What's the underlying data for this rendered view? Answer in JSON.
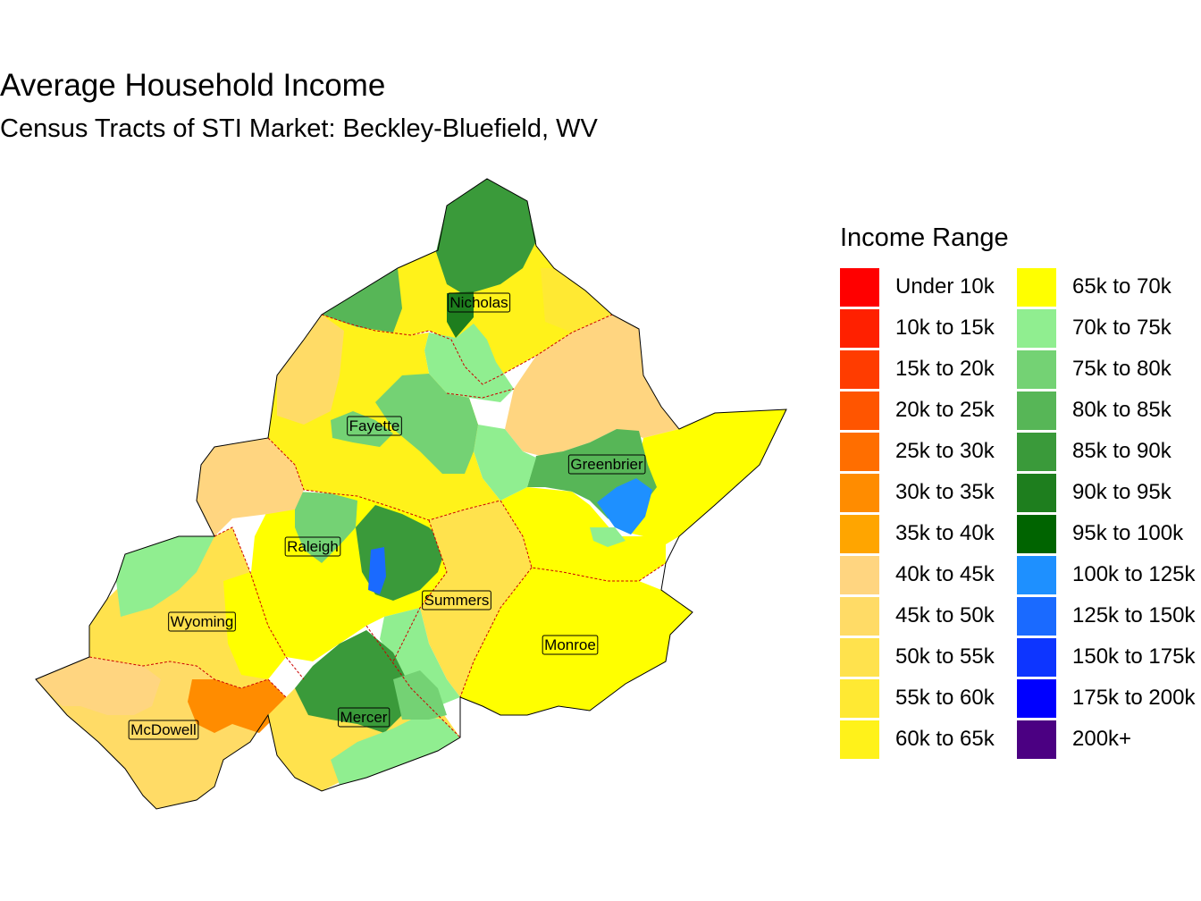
{
  "title": "Average Household Income",
  "subtitle": "Census Tracts of STI Market: Beckley-Bluefield, WV",
  "legend": {
    "title": "Income Range",
    "items": [
      {
        "label": "Under 10k",
        "color": "#FF0000"
      },
      {
        "label": "10k to 15k",
        "color": "#FF2000"
      },
      {
        "label": "15k to 20k",
        "color": "#FF3C00"
      },
      {
        "label": "20k to 25k",
        "color": "#FF5500"
      },
      {
        "label": "25k to 30k",
        "color": "#FF6E00"
      },
      {
        "label": "30k to 35k",
        "color": "#FF8C00"
      },
      {
        "label": "35k to 40k",
        "color": "#FFA500"
      },
      {
        "label": "40k to 45k",
        "color": "#FFD580"
      },
      {
        "label": "45k to 50k",
        "color": "#FFDB66"
      },
      {
        "label": "50k to 55k",
        "color": "#FFE24D"
      },
      {
        "label": "55k to 60k",
        "color": "#FFE933"
      },
      {
        "label": "60k to 65k",
        "color": "#FFF21A"
      },
      {
        "label": "65k to 70k",
        "color": "#FFFF00"
      },
      {
        "label": "70k to 75k",
        "color": "#90EE90"
      },
      {
        "label": "75k to 80k",
        "color": "#74D274"
      },
      {
        "label": "80k to 85k",
        "color": "#57B657"
      },
      {
        "label": "85k to 90k",
        "color": "#3A9A3A"
      },
      {
        "label": "90k to 95k",
        "color": "#1E7E1E"
      },
      {
        "label": "95k to 100k",
        "color": "#006400"
      },
      {
        "label": "100k to 125k",
        "color": "#1E90FF"
      },
      {
        "label": "125k to 150k",
        "color": "#1A6AFF"
      },
      {
        "label": "150k to 175k",
        "color": "#0D35FF"
      },
      {
        "label": "175k to 200k",
        "color": "#0000FF"
      },
      {
        "label": "200k+",
        "color": "#4B0082"
      }
    ]
  },
  "map": {
    "counties": [
      {
        "name": "Nicholas"
      },
      {
        "name": "Fayette"
      },
      {
        "name": "Greenbrier"
      },
      {
        "name": "Raleigh"
      },
      {
        "name": "Summers"
      },
      {
        "name": "Wyoming"
      },
      {
        "name": "Monroe"
      },
      {
        "name": "Mercer"
      },
      {
        "name": "McDowell"
      }
    ]
  }
}
